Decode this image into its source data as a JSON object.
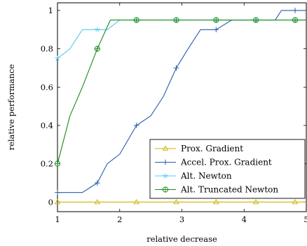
{
  "chart_data": {
    "type": "line",
    "title": "",
    "xlabel": "relative decrease",
    "ylabel": "relative performance",
    "xlim": [
      1,
      5
    ],
    "ylim": [
      -0.05,
      1.04
    ],
    "xticks": [
      1,
      2,
      3,
      4,
      5
    ],
    "xtick_labels": [
      "1",
      "2",
      "3",
      "4",
      "5"
    ],
    "yticks": [
      0,
      0.2,
      0.4,
      0.6,
      0.8,
      1
    ],
    "ytick_labels": [
      "0",
      "0.2",
      "0.4",
      "0.6",
      "0.8",
      "1"
    ],
    "grid": false,
    "legend_position": "bottom-right",
    "series": [
      {
        "name": "Prox. Gradient",
        "color": "#c8b400",
        "marker": "triangle",
        "x": [
          1,
          5
        ],
        "y": [
          0,
          0
        ],
        "marker_x": [
          1,
          1.64,
          2.27,
          2.91,
          3.55,
          4.19,
          4.82
        ]
      },
      {
        "name": "Accel. Prox. Gradient",
        "color": "#2a5caa",
        "marker": "plus",
        "x": [
          1,
          1.2,
          1.4,
          1.64,
          1.8,
          2.0,
          2.27,
          2.5,
          2.7,
          2.91,
          3.1,
          3.3,
          3.55,
          3.8,
          4.1,
          4.3,
          4.5,
          4.6,
          4.82,
          5.0
        ],
        "y": [
          0.05,
          0.05,
          0.05,
          0.1,
          0.2,
          0.25,
          0.4,
          0.45,
          0.55,
          0.7,
          0.8,
          0.9,
          0.9,
          0.95,
          0.95,
          0.95,
          0.95,
          1.0,
          1.0,
          1.0
        ],
        "marker_x": [
          1,
          1.64,
          2.27,
          2.91,
          3.55,
          4.19,
          4.82
        ]
      },
      {
        "name": "Alt. Newton",
        "color": "#55c8f0",
        "marker": "star",
        "x": [
          1,
          1.2,
          1.4,
          1.64,
          1.8,
          2.0,
          2.27,
          2.5,
          2.91,
          3.55,
          4.19,
          4.82,
          5.0
        ],
        "y": [
          0.75,
          0.8,
          0.9,
          0.9,
          0.9,
          0.95,
          0.95,
          0.95,
          0.95,
          0.95,
          0.95,
          0.95,
          0.95
        ],
        "marker_x": [
          1,
          1.64,
          2.27,
          2.91,
          3.55,
          4.19,
          4.82
        ]
      },
      {
        "name": "Alt. Truncated Newton",
        "color": "#1a8a1a",
        "marker": "circle-plus",
        "x": [
          1,
          1.2,
          1.4,
          1.64,
          1.85,
          2.27,
          2.91,
          3.55,
          4.19,
          4.82,
          5.0
        ],
        "y": [
          0.2,
          0.45,
          0.6,
          0.8,
          0.95,
          0.95,
          0.95,
          0.95,
          0.95,
          0.95,
          0.95
        ],
        "marker_x": [
          1,
          1.64,
          2.27,
          2.91,
          3.55,
          4.19,
          4.82
        ]
      }
    ]
  }
}
